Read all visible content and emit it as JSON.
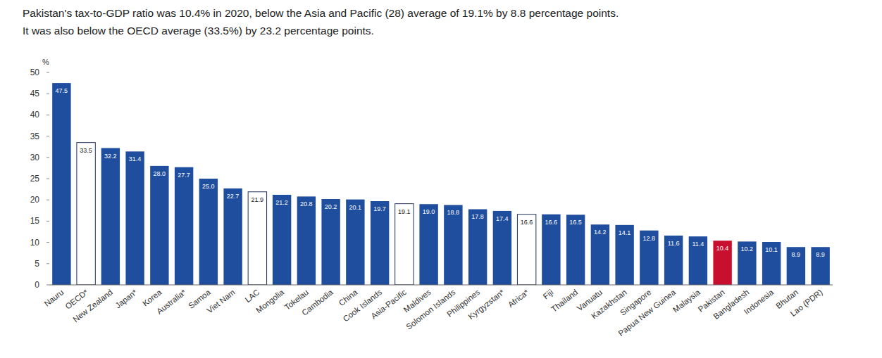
{
  "chart_data": {
    "type": "bar",
    "title": "Pakistan's tax-to-GDP ratio was 10.4% in 2020, below the Asia and Pacific (28) average of 19.1% by 8.8 percentage points.",
    "subtitle": "It was also below the OECD average (33.5%) by 23.2 percentage points.",
    "ylabel": "%",
    "categories": [
      "Nauru",
      "OECD*",
      "New Zealand",
      "Japan*",
      "Korea",
      "Australia*",
      "Samoa",
      "Viet Nam",
      "LAC",
      "Mongolia",
      "Tokelau",
      "Cambodia",
      "China",
      "Cook Islands",
      "Asia-Pacific",
      "Maldives",
      "Solomon Islands",
      "Philippines",
      "Kyrgyzstan*",
      "Africa*",
      "Fiji",
      "Thailand",
      "Vanuatu",
      "Kazakhstan",
      "Singapore",
      "Papua New Guinea",
      "Malaysia",
      "Pakistan",
      "Bangladesh",
      "Indonesia",
      "Bhutan",
      "Lao (PDR)"
    ],
    "values": [
      47.5,
      33.5,
      32.2,
      31.4,
      28.0,
      27.7,
      25.0,
      22.7,
      21.9,
      21.2,
      20.8,
      20.2,
      20.1,
      19.7,
      19.1,
      19.0,
      18.8,
      17.8,
      17.4,
      16.6,
      16.6,
      16.5,
      14.2,
      14.1,
      12.8,
      11.6,
      11.4,
      10.4,
      10.2,
      10.1,
      8.9,
      8.9
    ],
    "value_labels": [
      "47.5",
      "33.5",
      "32.2",
      "31.4",
      "28.0",
      "27.7",
      "25.0",
      "22.7",
      "21.9",
      "21.2",
      "20.8",
      "20.2",
      "20.1",
      "19.7",
      "19.1",
      "19.0",
      "18.8",
      "17.8",
      "17.4",
      "16.6",
      "16.6",
      "16.5",
      "14.2",
      "14.1",
      "12.8",
      "11.6",
      "11.4",
      "10.4",
      "10.2",
      "10.1",
      "8.9",
      "8.9"
    ],
    "colors": [
      "#1f4e9e",
      "#ffffff",
      "#1f4e9e",
      "#1f4e9e",
      "#1f4e9e",
      "#1f4e9e",
      "#1f4e9e",
      "#1f4e9e",
      "#ffffff",
      "#1f4e9e",
      "#1f4e9e",
      "#1f4e9e",
      "#1f4e9e",
      "#1f4e9e",
      "#ffffff",
      "#1f4e9e",
      "#1f4e9e",
      "#1f4e9e",
      "#1f4e9e",
      "#ffffff",
      "#1f4e9e",
      "#1f4e9e",
      "#1f4e9e",
      "#1f4e9e",
      "#1f4e9e",
      "#1f4e9e",
      "#1f4e9e",
      "#c8102e",
      "#1f4e9e",
      "#1f4e9e",
      "#1f4e9e",
      "#1f4e9e"
    ],
    "ylim": [
      0,
      50
    ],
    "yticks": [
      0,
      5,
      10,
      15,
      20,
      25,
      30,
      35,
      40,
      45,
      50
    ],
    "grid": false,
    "data_labels": true
  }
}
